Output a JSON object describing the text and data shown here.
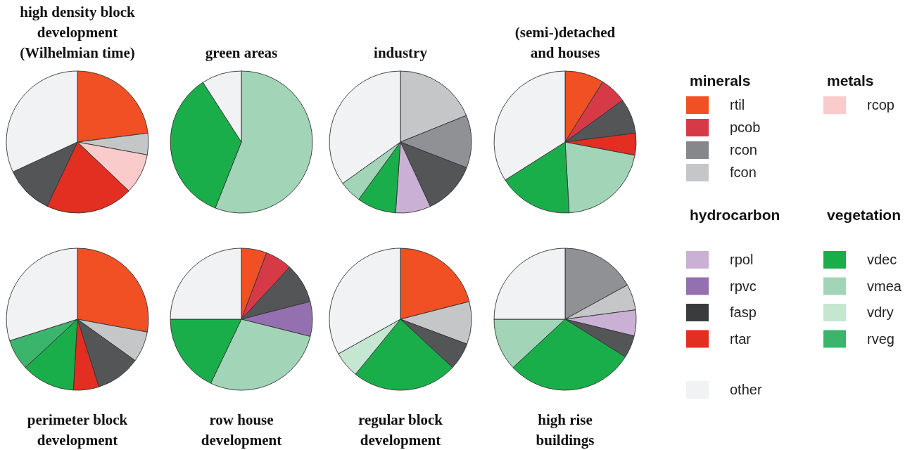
{
  "chart_data": [
    {
      "type": "pie",
      "title": "high density block\ndevelopment\n(Wilhelmian time)",
      "categories": [
        null,
        null,
        null,
        null,
        null,
        null
      ],
      "values": [
        23,
        4.9,
        9.2,
        19.9,
        11.1,
        31.9
      ],
      "colors": [
        "#f05023",
        "#c5c6c8",
        "#f9cbcb",
        "#e32e22",
        "#545557",
        "#f1f2f4"
      ]
    },
    {
      "type": "pie",
      "title": "green areas",
      "categories": [
        null,
        null,
        null
      ],
      "values": [
        56,
        34.9,
        9.1
      ],
      "colors": [
        "#a2d5b7",
        "#1aae4b",
        "#f1f2f4"
      ]
    },
    {
      "type": "pie",
      "title": "industry",
      "categories": [
        null,
        null,
        null,
        null,
        null,
        null,
        null
      ],
      "values": [
        18.9,
        12,
        12.2,
        8,
        8.9,
        5.1,
        34.9
      ],
      "colors": [
        "#c5c6c8",
        "#909195",
        "#545557",
        "#cbb0d5",
        "#1aae4b",
        "#a2d5b7",
        "#f1f2f4"
      ]
    },
    {
      "type": "pie",
      "title": "(semi-)detached\nand houses",
      "categories": [
        null,
        null,
        null,
        null,
        null,
        null,
        null
      ],
      "values": [
        8.9,
        6.1,
        8,
        5,
        21.1,
        16.9,
        34
      ],
      "colors": [
        "#f05023",
        "#d63a46",
        "#545557",
        "#e32e22",
        "#a2d5b7",
        "#1aae4b",
        "#f1f2f4"
      ]
    },
    {
      "type": "pie",
      "title": "perimeter block\ndevelopment",
      "categories": [
        null,
        null,
        null,
        null,
        null,
        null,
        null
      ],
      "values": [
        27.9,
        7,
        10.2,
        5.8,
        12.2,
        7,
        29.9
      ],
      "colors": [
        "#f05023",
        "#c5c6c8",
        "#545557",
        "#e32e22",
        "#1aae4b",
        "#3cb56c",
        "#f1f2f4"
      ]
    },
    {
      "type": "pie",
      "title": "row house\ndevelopment",
      "categories": [
        null,
        null,
        null,
        null,
        null,
        null,
        null
      ],
      "values": [
        5.8,
        6.1,
        9.1,
        7.9,
        28.2,
        17.9,
        25
      ],
      "colors": [
        "#f05023",
        "#d63a46",
        "#545557",
        "#9570b0",
        "#a2d5b7",
        "#1aae4b",
        "#f1f2f4"
      ]
    },
    {
      "type": "pie",
      "title": "regular block\ndevelopment",
      "categories": [
        null,
        null,
        null,
        null,
        null,
        null
      ],
      "values": [
        21,
        9.7,
        6.2,
        24,
        6,
        33.1
      ],
      "colors": [
        "#f05023",
        "#c5c6c8",
        "#545557",
        "#1aae4b",
        "#c5e6d1",
        "#f1f2f4"
      ]
    },
    {
      "type": "pie",
      "title": "high rise\nbuildings",
      "categories": [
        null,
        null,
        null,
        null,
        null,
        null,
        null
      ],
      "values": [
        17,
        5.9,
        5.9,
        5.1,
        29.2,
        11.9,
        25
      ],
      "colors": [
        "#909195",
        "#c5c6c8",
        "#cbb0d5",
        "#545557",
        "#1aae4b",
        "#a2d5b7",
        "#f1f2f4"
      ]
    },
    {
      "type": "other",
      "annotations": [
        "minerals",
        "metals",
        "hydrocarbon",
        "vegetation"
      ],
      "categories": [
        "rtil",
        "pcob",
        "rcon",
        "fcon",
        "rcop",
        "rpol",
        "rpvc",
        "fasp",
        "rtar",
        "vdec",
        "vmea",
        "vdry",
        "rveg",
        "other"
      ],
      "colors": [
        "#f05023",
        "#d63a46",
        "#86878a",
        "#c5c6c8",
        "#f9cbcb",
        "#cbb0d5",
        "#9570b0",
        "#3a3b3d",
        "#e32e22",
        "#1aae4b",
        "#a2d5b7",
        "#c5e6d1",
        "#3cb56c",
        "#f1f2f4"
      ]
    }
  ]
}
